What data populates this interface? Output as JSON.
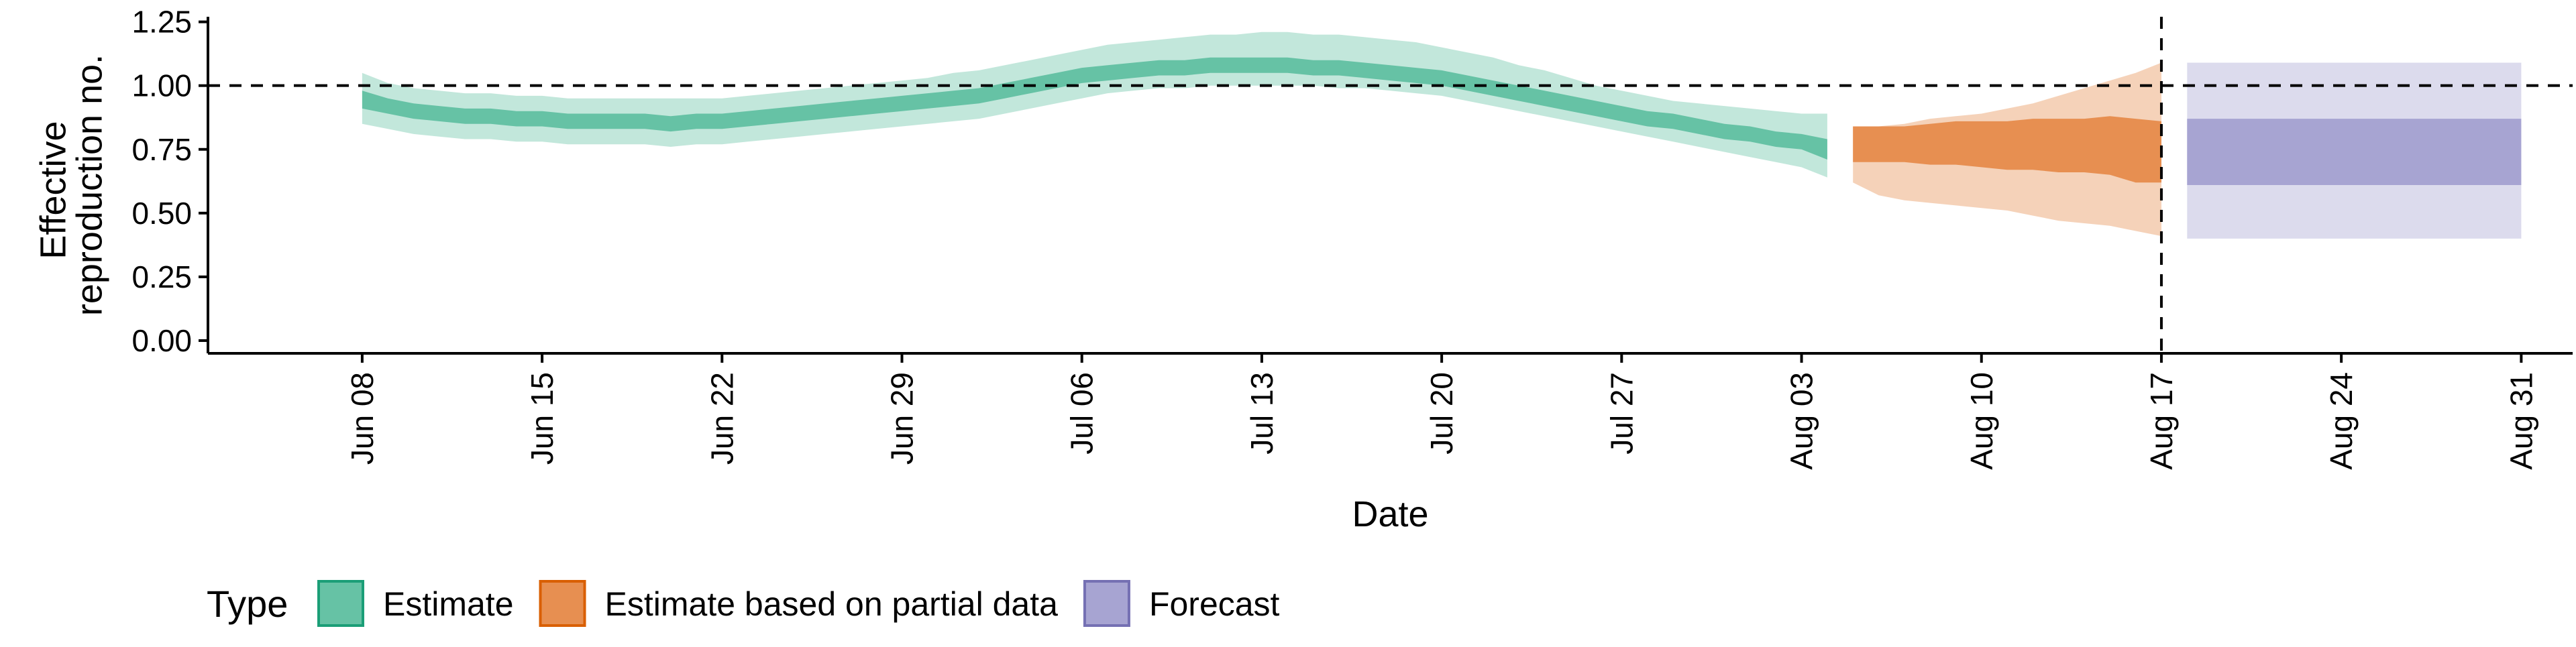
{
  "chart_data": {
    "type": "area",
    "xlabel": "Date",
    "ylabel_lines": [
      "Effective",
      "reproduction no."
    ],
    "x_range": [
      "2020-06-02",
      "2020-09-02"
    ],
    "ylim": [
      -0.05,
      1.27
    ],
    "yticks": [
      0.0,
      0.25,
      0.5,
      0.75,
      1.0,
      1.25
    ],
    "ytick_labels": [
      "0.00",
      "0.25",
      "0.50",
      "0.75",
      "1.00",
      "1.25"
    ],
    "xticks": [
      "2020-06-08",
      "2020-06-15",
      "2020-06-22",
      "2020-06-29",
      "2020-07-06",
      "2020-07-13",
      "2020-07-20",
      "2020-07-27",
      "2020-08-03",
      "2020-08-10",
      "2020-08-17",
      "2020-08-24",
      "2020-08-31"
    ],
    "xtick_labels": [
      "Jun 08",
      "Jun 15",
      "Jun 22",
      "Jun 29",
      "Jul 06",
      "Jul 13",
      "Jul 20",
      "Jul 27",
      "Aug 03",
      "Aug 10",
      "Aug 17",
      "Aug 24",
      "Aug 31"
    ],
    "hline": 1.0,
    "vline": "2020-08-17",
    "grid": false,
    "legend": {
      "title": "Type",
      "position": "bottom-left",
      "entries": [
        "Estimate",
        "Estimate based on partial data",
        "Forecast"
      ]
    },
    "series": [
      {
        "name": "Estimate",
        "color": "#66c2a5",
        "edge_color": "#1b9e77",
        "x": [
          "2020-06-08",
          "2020-06-09",
          "2020-06-10",
          "2020-06-11",
          "2020-06-12",
          "2020-06-13",
          "2020-06-14",
          "2020-06-15",
          "2020-06-16",
          "2020-06-17",
          "2020-06-18",
          "2020-06-19",
          "2020-06-20",
          "2020-06-21",
          "2020-06-22",
          "2020-06-23",
          "2020-06-24",
          "2020-06-25",
          "2020-06-26",
          "2020-06-27",
          "2020-06-28",
          "2020-06-29",
          "2020-06-30",
          "2020-07-01",
          "2020-07-02",
          "2020-07-03",
          "2020-07-04",
          "2020-07-05",
          "2020-07-06",
          "2020-07-07",
          "2020-07-08",
          "2020-07-09",
          "2020-07-10",
          "2020-07-11",
          "2020-07-12",
          "2020-07-13",
          "2020-07-14",
          "2020-07-15",
          "2020-07-16",
          "2020-07-17",
          "2020-07-18",
          "2020-07-19",
          "2020-07-20",
          "2020-07-21",
          "2020-07-22",
          "2020-07-23",
          "2020-07-24",
          "2020-07-25",
          "2020-07-26",
          "2020-07-27",
          "2020-07-28",
          "2020-07-29",
          "2020-07-30",
          "2020-07-31",
          "2020-08-01",
          "2020-08-02",
          "2020-08-03",
          "2020-08-04"
        ],
        "lower_90": [
          0.85,
          0.83,
          0.81,
          0.8,
          0.79,
          0.79,
          0.78,
          0.78,
          0.77,
          0.77,
          0.77,
          0.77,
          0.76,
          0.77,
          0.77,
          0.78,
          0.79,
          0.8,
          0.81,
          0.82,
          0.83,
          0.84,
          0.85,
          0.86,
          0.87,
          0.89,
          0.91,
          0.93,
          0.95,
          0.97,
          0.98,
          0.99,
          0.99,
          1.0,
          1.0,
          1.0,
          1.0,
          1.0,
          0.99,
          0.99,
          0.98,
          0.97,
          0.96,
          0.94,
          0.92,
          0.9,
          0.88,
          0.86,
          0.84,
          0.82,
          0.8,
          0.78,
          0.76,
          0.74,
          0.72,
          0.7,
          0.68,
          0.64
        ],
        "lower_50": [
          0.91,
          0.89,
          0.87,
          0.86,
          0.85,
          0.85,
          0.84,
          0.84,
          0.83,
          0.83,
          0.83,
          0.83,
          0.82,
          0.83,
          0.83,
          0.84,
          0.85,
          0.86,
          0.87,
          0.88,
          0.89,
          0.9,
          0.91,
          0.92,
          0.93,
          0.95,
          0.97,
          0.99,
          1.01,
          1.02,
          1.03,
          1.04,
          1.04,
          1.05,
          1.05,
          1.05,
          1.05,
          1.04,
          1.04,
          1.03,
          1.02,
          1.01,
          1.0,
          0.98,
          0.96,
          0.94,
          0.92,
          0.9,
          0.88,
          0.86,
          0.84,
          0.83,
          0.81,
          0.79,
          0.78,
          0.76,
          0.75,
          0.71
        ],
        "upper_50": [
          0.98,
          0.95,
          0.93,
          0.92,
          0.91,
          0.91,
          0.9,
          0.9,
          0.89,
          0.89,
          0.89,
          0.89,
          0.88,
          0.89,
          0.89,
          0.9,
          0.91,
          0.92,
          0.93,
          0.94,
          0.95,
          0.96,
          0.97,
          0.98,
          0.99,
          1.01,
          1.03,
          1.05,
          1.07,
          1.08,
          1.09,
          1.1,
          1.1,
          1.11,
          1.11,
          1.11,
          1.11,
          1.1,
          1.1,
          1.09,
          1.08,
          1.07,
          1.06,
          1.04,
          1.02,
          1.0,
          0.98,
          0.96,
          0.94,
          0.92,
          0.9,
          0.89,
          0.87,
          0.85,
          0.84,
          0.82,
          0.81,
          0.79
        ],
        "upper_90": [
          1.05,
          1.01,
          0.99,
          0.98,
          0.97,
          0.97,
          0.96,
          0.96,
          0.95,
          0.95,
          0.95,
          0.95,
          0.95,
          0.95,
          0.95,
          0.96,
          0.97,
          0.98,
          0.99,
          1.0,
          1.01,
          1.02,
          1.03,
          1.05,
          1.06,
          1.08,
          1.1,
          1.12,
          1.14,
          1.16,
          1.17,
          1.18,
          1.19,
          1.2,
          1.2,
          1.21,
          1.21,
          1.2,
          1.2,
          1.19,
          1.18,
          1.17,
          1.15,
          1.13,
          1.11,
          1.08,
          1.06,
          1.03,
          1.0,
          0.98,
          0.96,
          0.94,
          0.93,
          0.92,
          0.91,
          0.9,
          0.89,
          0.89
        ]
      },
      {
        "name": "Estimate based on partial data",
        "color": "#e78f51",
        "edge_color": "#d95f02",
        "x": [
          "2020-08-05",
          "2020-08-06",
          "2020-08-07",
          "2020-08-08",
          "2020-08-09",
          "2020-08-10",
          "2020-08-11",
          "2020-08-12",
          "2020-08-13",
          "2020-08-14",
          "2020-08-15",
          "2020-08-16",
          "2020-08-17"
        ],
        "lower_90": [
          0.62,
          0.57,
          0.55,
          0.54,
          0.53,
          0.52,
          0.51,
          0.49,
          0.47,
          0.46,
          0.45,
          0.43,
          0.41
        ],
        "lower_50": [
          0.7,
          0.7,
          0.7,
          0.69,
          0.69,
          0.68,
          0.67,
          0.67,
          0.66,
          0.66,
          0.65,
          0.62,
          0.62
        ],
        "upper_50": [
          0.84,
          0.84,
          0.84,
          0.85,
          0.86,
          0.86,
          0.86,
          0.87,
          0.87,
          0.87,
          0.88,
          0.87,
          0.86
        ],
        "upper_90": [
          0.84,
          0.84,
          0.85,
          0.87,
          0.88,
          0.89,
          0.91,
          0.93,
          0.96,
          0.99,
          1.02,
          1.05,
          1.09
        ]
      },
      {
        "name": "Forecast",
        "color": "#a7a4d2",
        "edge_color": "#7570b3",
        "x": [
          "2020-08-18",
          "2020-08-31"
        ],
        "lower_90": [
          0.4,
          0.4
        ],
        "lower_50": [
          0.61,
          0.61
        ],
        "upper_50": [
          0.87,
          0.87
        ],
        "upper_90": [
          1.09,
          1.09
        ]
      }
    ]
  }
}
